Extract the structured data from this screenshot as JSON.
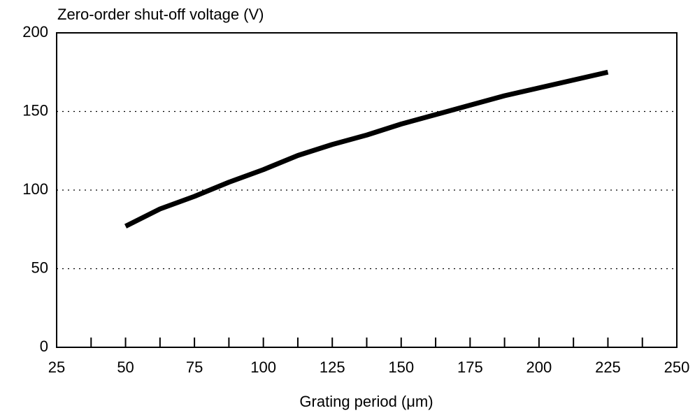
{
  "chart_data": {
    "type": "line",
    "ylabel": "Zero-order shut-off voltage (V)",
    "xlabel": "Grating period (μm)",
    "x": [
      50,
      62.5,
      75,
      87.5,
      100,
      112.5,
      125,
      137.5,
      150,
      162.5,
      175,
      187.5,
      200,
      212.5,
      225
    ],
    "series": [
      {
        "color": "#000000",
        "values": [
          77,
          88,
          96,
          105,
          113,
          122,
          129,
          135,
          142,
          148,
          154,
          160,
          165,
          170,
          175
        ]
      }
    ],
    "xlim": [
      25,
      250
    ],
    "xticks": [
      25,
      50,
      75,
      100,
      125,
      150,
      175,
      200,
      225,
      250
    ],
    "xminorticks": [
      37.5,
      62.5,
      87.5,
      112.5,
      137.5,
      162.5,
      187.5,
      212.5,
      237.5
    ],
    "ylim": [
      0,
      200
    ],
    "yticks": [
      0,
      50,
      100,
      150,
      200
    ],
    "grid": true
  }
}
